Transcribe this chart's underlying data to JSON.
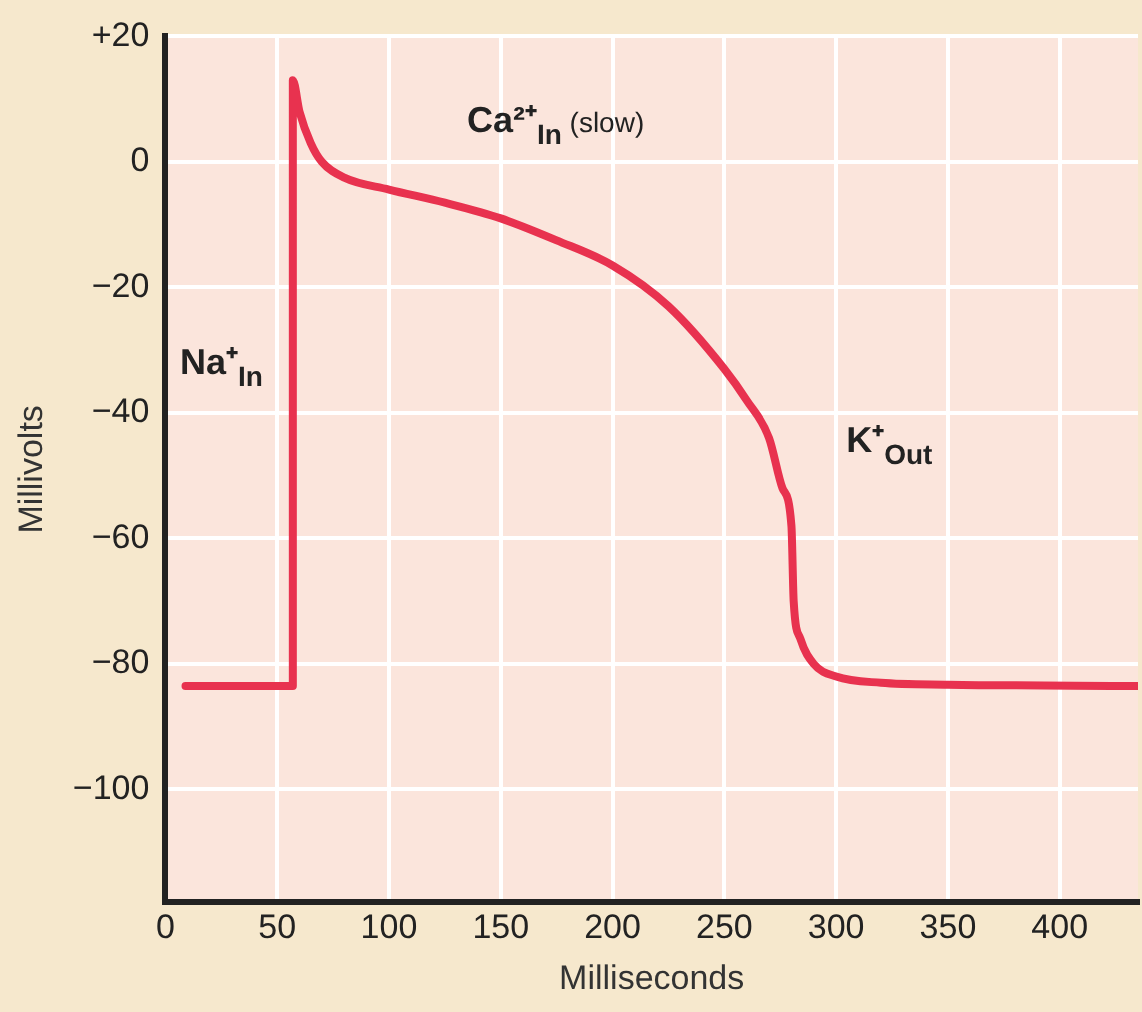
{
  "chart_data": {
    "type": "line",
    "xlabel": "Milliseconds",
    "ylabel": "Millivolts",
    "x": [
      9,
      57,
      57,
      60,
      65,
      70,
      80,
      100,
      125,
      150,
      175,
      200,
      225,
      250,
      260,
      270,
      276,
      280,
      281,
      284,
      290,
      300,
      320,
      350,
      435
    ],
    "series": [
      {
        "color": "#e8324f",
        "values": [
          -83.5,
          -83.5,
          13,
          8,
          3,
          0,
          -2.5,
          -4.4,
          -6.5,
          -9,
          -12.5,
          -16.5,
          -23,
          -33,
          -38,
          -44,
          -52,
          -58,
          -70,
          -76,
          -80,
          -82,
          -83,
          -83.3,
          -83.5
        ]
      }
    ],
    "xlim": [
      0,
      435
    ],
    "xticks": [
      0,
      50,
      100,
      150,
      200,
      250,
      300,
      350,
      400
    ],
    "ylim": [
      -118,
      20
    ],
    "yticks": [
      {
        "value": 20,
        "label": "+20"
      },
      0,
      {
        "value": -20,
        "label": "−20"
      },
      {
        "value": -40,
        "label": "−40"
      },
      {
        "value": -60,
        "label": "−60"
      },
      {
        "value": -80,
        "label": "−80"
      },
      {
        "value": -100,
        "label": "−100"
      }
    ],
    "grid": true,
    "legend": false,
    "marker": "none",
    "line_style": "solid",
    "annotations": [
      "Na⁺$_{In}$",
      "Ca²⁺$_{In}$ (slow)",
      "K⁺$_{Out}$"
    ]
  }
}
